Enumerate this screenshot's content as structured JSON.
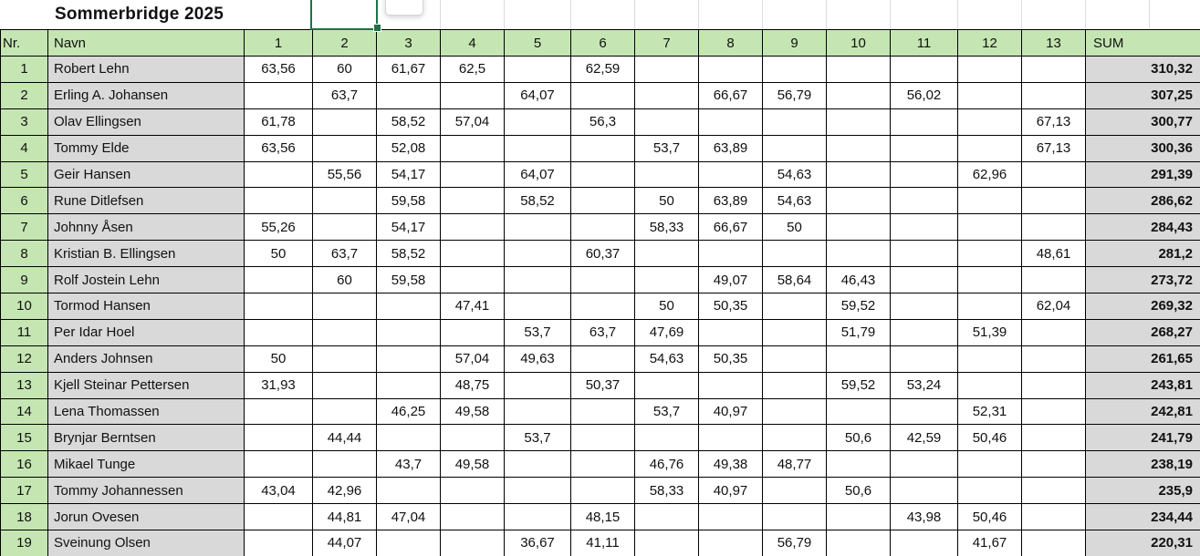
{
  "title": "Sommerbridge 2025",
  "selection": {
    "above_column": "2"
  },
  "colors": {
    "header_green": "#c5e6b2",
    "cell_gray": "#d9d9d9",
    "selection_green": "#1e7145"
  },
  "table": {
    "headers": [
      "Nr.",
      "Navn",
      "1",
      "2",
      "3",
      "4",
      "5",
      "6",
      "7",
      "8",
      "9",
      "10",
      "11",
      "12",
      "13",
      "SUM"
    ],
    "rows": [
      {
        "nr": "1",
        "navn": "Robert Lehn",
        "scores": [
          "63,56",
          "60",
          "61,67",
          "62,5",
          "",
          "62,59",
          "",
          "",
          "",
          "",
          "",
          "",
          ""
        ],
        "sum": "310,32"
      },
      {
        "nr": "2",
        "navn": "Erling A. Johansen",
        "scores": [
          "",
          "63,7",
          "",
          "",
          "64,07",
          "",
          "",
          "66,67",
          "56,79",
          "",
          "56,02",
          "",
          ""
        ],
        "sum": "307,25"
      },
      {
        "nr": "3",
        "navn": "Olav Ellingsen",
        "scores": [
          "61,78",
          "",
          "58,52",
          "57,04",
          "",
          "56,3",
          "",
          "",
          "",
          "",
          "",
          "",
          "67,13"
        ],
        "sum": "300,77"
      },
      {
        "nr": "4",
        "navn": "Tommy Elde",
        "scores": [
          "63,56",
          "",
          "52,08",
          "",
          "",
          "",
          "53,7",
          "63,89",
          "",
          "",
          "",
          "",
          "67,13"
        ],
        "sum": "300,36"
      },
      {
        "nr": "5",
        "navn": "Geir Hansen",
        "scores": [
          "",
          "55,56",
          "54,17",
          "",
          "64,07",
          "",
          "",
          "",
          "54,63",
          "",
          "",
          "62,96",
          ""
        ],
        "sum": "291,39"
      },
      {
        "nr": "6",
        "navn": "Rune Ditlefsen",
        "scores": [
          "",
          "",
          "59,58",
          "",
          "58,52",
          "",
          "50",
          "63,89",
          "54,63",
          "",
          "",
          "",
          ""
        ],
        "sum": "286,62"
      },
      {
        "nr": "7",
        "navn": "Johnny Åsen",
        "scores": [
          "55,26",
          "",
          "54,17",
          "",
          "",
          "",
          "58,33",
          "66,67",
          "50",
          "",
          "",
          "",
          ""
        ],
        "sum": "284,43"
      },
      {
        "nr": "8",
        "navn": "Kristian B. Ellingsen",
        "scores": [
          "50",
          "63,7",
          "58,52",
          "",
          "",
          "60,37",
          "",
          "",
          "",
          "",
          "",
          "",
          "48,61"
        ],
        "sum": "281,2"
      },
      {
        "nr": "9",
        "navn": "Rolf Jostein Lehn",
        "scores": [
          "",
          "60",
          "59,58",
          "",
          "",
          "",
          "",
          "49,07",
          "58,64",
          "46,43",
          "",
          "",
          ""
        ],
        "sum": "273,72"
      },
      {
        "nr": "10",
        "navn": "Tormod Hansen",
        "scores": [
          "",
          "",
          "",
          "47,41",
          "",
          "",
          "50",
          "50,35",
          "",
          "59,52",
          "",
          "",
          "62,04"
        ],
        "sum": "269,32"
      },
      {
        "nr": "11",
        "navn": "Per Idar Hoel",
        "scores": [
          "",
          "",
          "",
          "",
          "53,7",
          "63,7",
          "47,69",
          "",
          "",
          "51,79",
          "",
          "51,39",
          ""
        ],
        "sum": "268,27"
      },
      {
        "nr": "12",
        "navn": "Anders Johnsen",
        "scores": [
          "50",
          "",
          "",
          "57,04",
          "49,63",
          "",
          "54,63",
          "50,35",
          "",
          "",
          "",
          "",
          ""
        ],
        "sum": "261,65"
      },
      {
        "nr": "13",
        "navn": "Kjell Steinar Pettersen",
        "scores": [
          "31,93",
          "",
          "",
          "48,75",
          "",
          "50,37",
          "",
          "",
          "",
          "59,52",
          "53,24",
          "",
          ""
        ],
        "sum": "243,81"
      },
      {
        "nr": "14",
        "navn": "Lena Thomassen",
        "scores": [
          "",
          "",
          "46,25",
          "49,58",
          "",
          "",
          "53,7",
          "40,97",
          "",
          "",
          "",
          "52,31",
          ""
        ],
        "sum": "242,81"
      },
      {
        "nr": "15",
        "navn": "Brynjar Berntsen",
        "scores": [
          "",
          "44,44",
          "",
          "",
          "53,7",
          "",
          "",
          "",
          "",
          "50,6",
          "42,59",
          "50,46",
          ""
        ],
        "sum": "241,79"
      },
      {
        "nr": "16",
        "navn": "Mikael Tunge",
        "scores": [
          "",
          "",
          "43,7",
          "49,58",
          "",
          "",
          "46,76",
          "49,38",
          "48,77",
          "",
          "",
          "",
          ""
        ],
        "sum": "238,19"
      },
      {
        "nr": "17",
        "navn": "Tommy Johannessen",
        "scores": [
          "43,04",
          "42,96",
          "",
          "",
          "",
          "",
          "58,33",
          "40,97",
          "",
          "50,6",
          "",
          "",
          ""
        ],
        "sum": "235,9"
      },
      {
        "nr": "18",
        "navn": "Jorun Ovesen",
        "scores": [
          "",
          "44,81",
          "47,04",
          "",
          "",
          "48,15",
          "",
          "",
          "",
          "",
          "43,98",
          "50,46",
          ""
        ],
        "sum": "234,44"
      },
      {
        "nr": "19",
        "navn": "Sveinung Olsen",
        "scores": [
          "",
          "44,07",
          "",
          "",
          "36,67",
          "41,11",
          "",
          "",
          "56,79",
          "",
          "",
          "41,67",
          ""
        ],
        "sum": "220,31"
      }
    ]
  }
}
